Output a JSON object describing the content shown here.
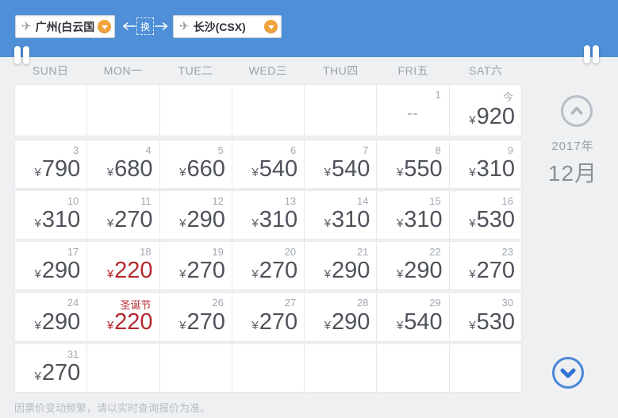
{
  "route_bar": {
    "from_label": "广州(白云国",
    "to_label": "长沙(CSX)",
    "swap_label": "换"
  },
  "calendar": {
    "year_label": "2017年",
    "month_label": "12月",
    "currency": "¥",
    "weekdays": [
      "SUN日",
      "MON一",
      "TUE二",
      "WED三",
      "THU四",
      "FRI五",
      "SAT六"
    ],
    "weeks": [
      [
        {},
        {},
        {},
        {},
        {},
        {
          "day": "1",
          "price": "--"
        },
        {
          "day": "今",
          "price": "920"
        }
      ],
      [
        {
          "day": "3",
          "price": "790"
        },
        {
          "day": "4",
          "price": "680"
        },
        {
          "day": "5",
          "price": "660"
        },
        {
          "day": "6",
          "price": "540"
        },
        {
          "day": "7",
          "price": "540"
        },
        {
          "day": "8",
          "price": "550"
        },
        {
          "day": "9",
          "price": "310"
        }
      ],
      [
        {
          "day": "10",
          "price": "310"
        },
        {
          "day": "11",
          "price": "270"
        },
        {
          "day": "12",
          "price": "290"
        },
        {
          "day": "13",
          "price": "310"
        },
        {
          "day": "14",
          "price": "310"
        },
        {
          "day": "15",
          "price": "310"
        },
        {
          "day": "16",
          "price": "530"
        }
      ],
      [
        {
          "day": "17",
          "price": "290"
        },
        {
          "day": "18",
          "price": "220",
          "red": true
        },
        {
          "day": "19",
          "price": "270"
        },
        {
          "day": "20",
          "price": "270"
        },
        {
          "day": "21",
          "price": "290"
        },
        {
          "day": "22",
          "price": "290"
        },
        {
          "day": "23",
          "price": "270"
        }
      ],
      [
        {
          "day": "24",
          "price": "290"
        },
        {
          "day": "圣诞节",
          "price": "220",
          "red": true,
          "red_day": true
        },
        {
          "day": "26",
          "price": "270"
        },
        {
          "day": "27",
          "price": "270"
        },
        {
          "day": "28",
          "price": "290"
        },
        {
          "day": "29",
          "price": "540"
        },
        {
          "day": "30",
          "price": "530"
        }
      ],
      [
        {
          "day": "31",
          "price": "270"
        },
        {},
        {},
        {},
        {},
        {},
        {}
      ]
    ]
  },
  "footer": {
    "note": "因票价变动频繁，请以实时查询报价为准。"
  },
  "colors": {
    "topbar_blue": "#4e8fd7",
    "dropdown_orange": "#f2a33c",
    "price_red": "#b4292e",
    "price_grey": "#4e525a",
    "scroll_down_blue": "#4a86d8",
    "scroll_up_grey": "#b9bec6"
  }
}
